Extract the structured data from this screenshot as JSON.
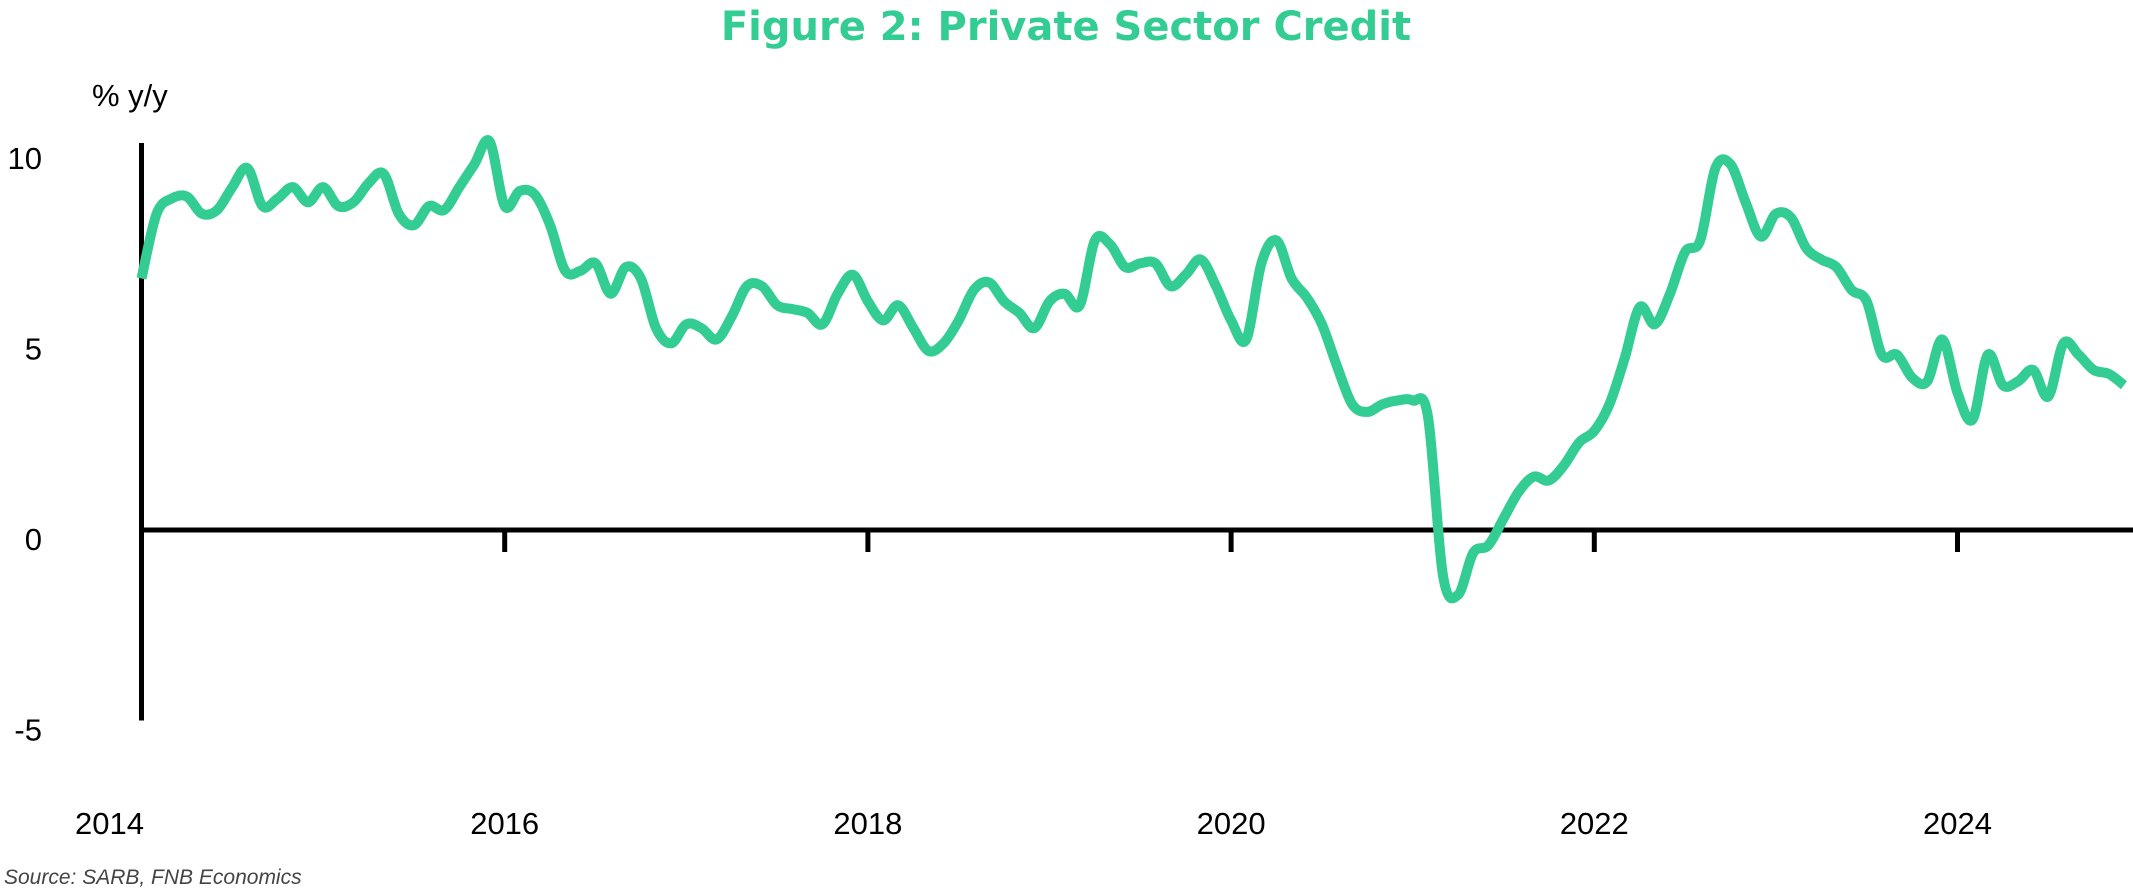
{
  "chart_data": {
    "type": "line",
    "title": "Figure 2: Private Sector Credit",
    "ylabel": "% y/y",
    "xlabel": "",
    "source": "Source: SARB, FNB Economics",
    "frequency": "monthly",
    "x_start": "2014-01",
    "x_end": "2024-12",
    "xlim": [
      2014,
      2025
    ],
    "ylim": [
      -5,
      10
    ],
    "x_ticks": [
      "2014",
      "2016",
      "2018",
      "2020",
      "2022",
      "2024"
    ],
    "y_ticks": [
      "10",
      "5",
      "0",
      "-5"
    ],
    "grid": false,
    "legend": "none",
    "line_color": "#33cc92",
    "title_color": "#33cc92",
    "series": [
      {
        "values": [
          6.6,
          8.3,
          8.7,
          8.75,
          8.3,
          8.4,
          9.0,
          9.5,
          8.5,
          8.7,
          9.0,
          8.6,
          9.0,
          8.5,
          8.6,
          9.1,
          9.35,
          8.3,
          8.0,
          8.5,
          8.4,
          9.0,
          9.6,
          10.2,
          8.5,
          8.9,
          8.8,
          8.0,
          6.8,
          6.8,
          7.0,
          6.2,
          6.9,
          6.6,
          5.3,
          4.9,
          5.4,
          5.3,
          5.0,
          5.6,
          6.4,
          6.4,
          5.9,
          5.8,
          5.7,
          5.4,
          6.2,
          6.7,
          6.0,
          5.5,
          5.9,
          5.3,
          4.7,
          4.9,
          5.5,
          6.3,
          6.5,
          6.0,
          5.7,
          5.3,
          6.0,
          6.2,
          5.9,
          7.6,
          7.5,
          6.9,
          7.0,
          7.0,
          6.4,
          6.7,
          7.1,
          6.4,
          5.5,
          5.0,
          7.0,
          7.6,
          6.6,
          6.1,
          5.4,
          4.3,
          3.3,
          3.1,
          3.3,
          3.4,
          3.4,
          3.0,
          -1.2,
          -1.7,
          -0.6,
          -0.4,
          0.3,
          1.0,
          1.4,
          1.3,
          1.7,
          2.3,
          2.6,
          3.3,
          4.5,
          5.85,
          5.4,
          6.2,
          7.3,
          7.6,
          9.5,
          9.6,
          8.6,
          7.7,
          8.3,
          8.2,
          7.4,
          7.1,
          6.9,
          6.3,
          6.0,
          4.6,
          4.6,
          4.0,
          3.9,
          5.0,
          3.6,
          2.9,
          4.6,
          3.8,
          3.9,
          4.2,
          3.5,
          4.9,
          4.6,
          4.2,
          4.1,
          3.8
        ]
      }
    ]
  }
}
